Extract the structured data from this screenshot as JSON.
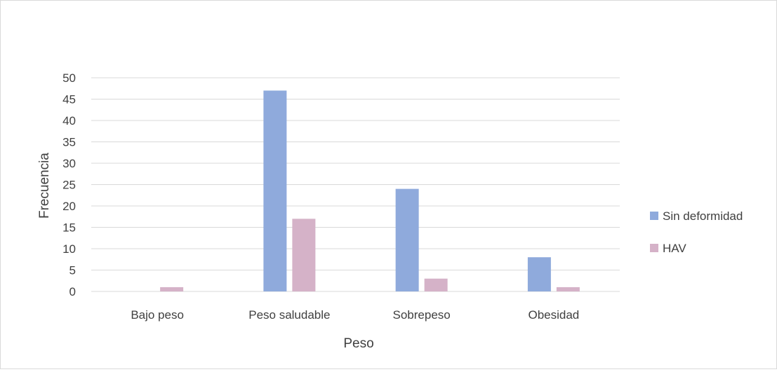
{
  "chart_data": {
    "type": "bar",
    "title": "",
    "xlabel": "Peso",
    "ylabel": "Frecuencia",
    "categories": [
      "Bajo peso",
      "Peso saludable",
      "Sobrepeso",
      "Obesidad"
    ],
    "series": [
      {
        "name": "Sin deformidad",
        "values": [
          0,
          47,
          24,
          8
        ],
        "color": "#8faadc"
      },
      {
        "name": "HAV",
        "values": [
          1,
          17,
          3,
          1
        ],
        "color": "#d5b2c8"
      }
    ],
    "ylim": [
      0,
      50
    ],
    "yticks": [
      0,
      5,
      10,
      15,
      20,
      25,
      30,
      35,
      40,
      45,
      50
    ],
    "grid": true,
    "legend_position": "right",
    "colors": {
      "gridline": "#d9d9d9",
      "text": "#404040",
      "frame": "#d9d9d9"
    }
  }
}
